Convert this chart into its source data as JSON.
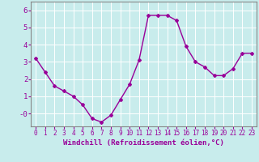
{
  "x": [
    0,
    1,
    2,
    3,
    4,
    5,
    6,
    7,
    8,
    9,
    10,
    11,
    12,
    13,
    14,
    15,
    16,
    17,
    18,
    19,
    20,
    21,
    22,
    23
  ],
  "y": [
    3.2,
    2.4,
    1.6,
    1.3,
    1.0,
    0.5,
    -0.3,
    -0.5,
    -0.1,
    0.8,
    1.7,
    3.1,
    5.7,
    5.7,
    5.7,
    5.4,
    3.9,
    3.0,
    2.7,
    2.2,
    2.2,
    2.6,
    3.5,
    3.5
  ],
  "line_color": "#990099",
  "marker": "D",
  "marker_size": 2.0,
  "bg_color": "#c8ecec",
  "grid_color": "#ffffff",
  "xlabel": "Windchill (Refroidissement éolien,°C)",
  "xlabel_color": "#990099",
  "xlabel_fontsize": 6.5,
  "ytick_labels": [
    "-0",
    "1",
    "2",
    "3",
    "4",
    "5",
    "6"
  ],
  "ytick_vals": [
    -0.0,
    1,
    2,
    3,
    4,
    5,
    6
  ],
  "xlim": [
    -0.5,
    23.5
  ],
  "ylim": [
    -0.75,
    6.5
  ],
  "xtick_labels": [
    "0",
    "1",
    "2",
    "3",
    "4",
    "5",
    "6",
    "7",
    "8",
    "9",
    "10",
    "11",
    "12",
    "13",
    "14",
    "15",
    "16",
    "17",
    "18",
    "19",
    "20",
    "21",
    "22",
    "23"
  ],
  "tick_color": "#990099",
  "xtick_fontsize": 5.5,
  "ytick_fontsize": 6.5,
  "spine_color": "#888888",
  "line_width": 1.0
}
